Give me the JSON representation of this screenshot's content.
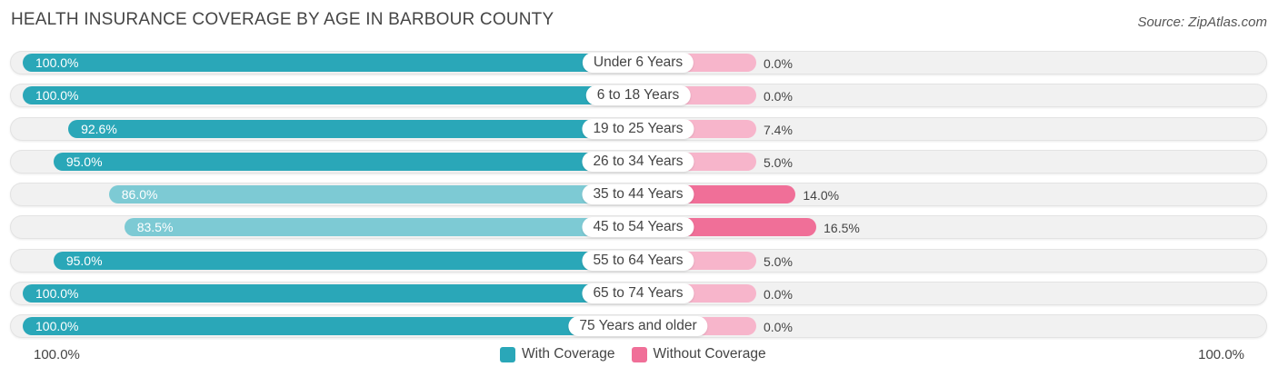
{
  "header": {
    "title": "HEALTH INSURANCE COVERAGE BY AGE IN BARBOUR COUNTY",
    "source": "Source: ZipAtlas.com"
  },
  "colors": {
    "with_coverage_strong": "#2aa7b8",
    "with_coverage_light": "#7dcad4",
    "without_coverage_strong": "#f06f98",
    "without_coverage_light": "#f7b5cb",
    "track": "#f1f1f1"
  },
  "chart_data": {
    "type": "bar",
    "orientation": "horizontal-diverging",
    "title": "HEALTH INSURANCE COVERAGE BY AGE IN BARBOUR COUNTY",
    "categories": [
      "Under 6 Years",
      "6 to 18 Years",
      "19 to 25 Years",
      "26 to 34 Years",
      "35 to 44 Years",
      "45 to 54 Years",
      "55 to 64 Years",
      "65 to 74 Years",
      "75 Years and older"
    ],
    "series": [
      {
        "name": "With Coverage",
        "values": [
          100.0,
          100.0,
          92.6,
          95.0,
          86.0,
          83.5,
          95.0,
          100.0,
          100.0
        ],
        "labels": [
          "100.0%",
          "100.0%",
          "92.6%",
          "95.0%",
          "86.0%",
          "83.5%",
          "95.0%",
          "100.0%",
          "100.0%"
        ]
      },
      {
        "name": "Without Coverage",
        "values": [
          0.0,
          0.0,
          7.4,
          5.0,
          14.0,
          16.5,
          5.0,
          0.0,
          0.0
        ],
        "labels": [
          "0.0%",
          "0.0%",
          "7.4%",
          "5.0%",
          "14.0%",
          "16.5%",
          "5.0%",
          "0.0%",
          "0.0%"
        ]
      }
    ],
    "axis": {
      "left_label": "100.0%",
      "right_label": "100.0%",
      "range": [
        0,
        100
      ]
    },
    "legend": [
      "With Coverage",
      "Without Coverage"
    ],
    "legend_position": "bottom-center"
  }
}
